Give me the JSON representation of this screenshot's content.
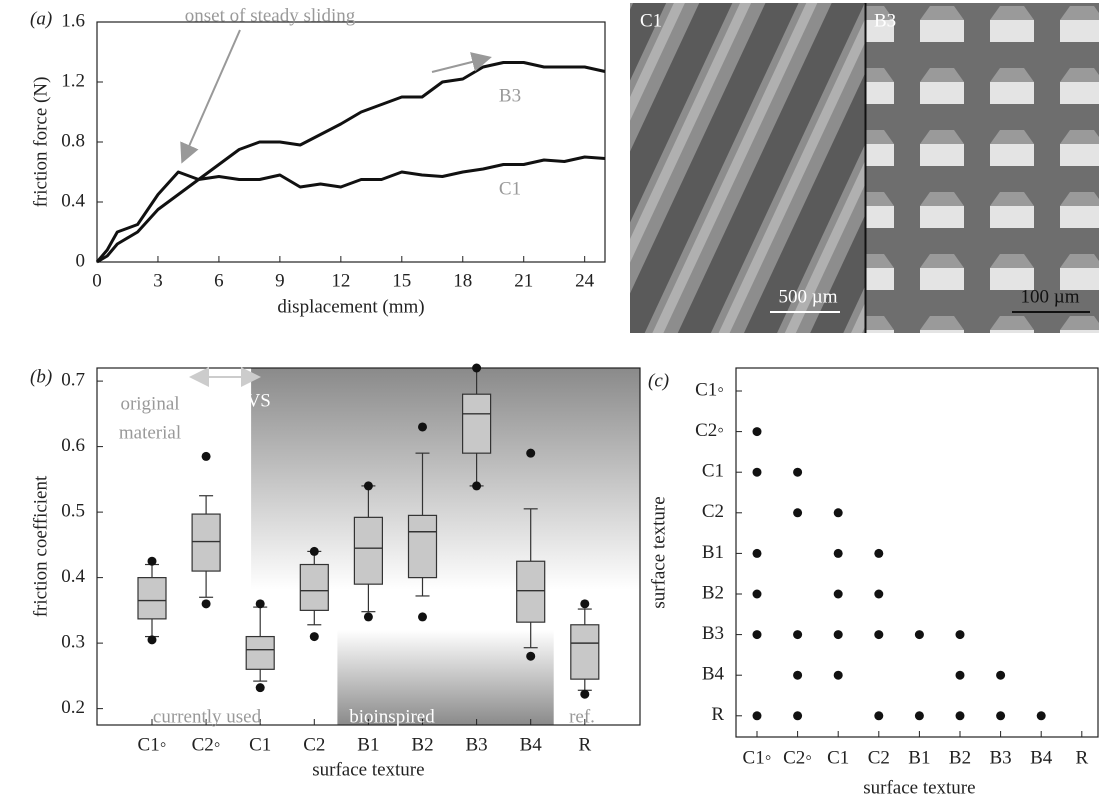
{
  "chart_data": [
    {
      "type": "line",
      "panel_label": "(a)",
      "x_label": "displacement (mm)",
      "y_label": "friction force (N)",
      "annotation": "onset of steady sliding",
      "x": [
        0,
        0.5,
        1,
        2,
        3,
        4,
        5,
        6,
        7,
        8,
        9,
        10,
        11,
        12,
        13,
        14,
        15,
        16,
        17,
        18,
        19,
        20,
        21,
        22,
        23,
        24,
        25
      ],
      "series": [
        {
          "name": "B3",
          "color": "#111111",
          "values": [
            0,
            0.04,
            0.12,
            0.2,
            0.35,
            0.45,
            0.55,
            0.65,
            0.75,
            0.8,
            0.8,
            0.78,
            0.85,
            0.92,
            1.0,
            1.05,
            1.1,
            1.1,
            1.2,
            1.22,
            1.3,
            1.33,
            1.33,
            1.3,
            1.3,
            1.3,
            1.27
          ]
        },
        {
          "name": "C1",
          "color": "#111111",
          "values": [
            0,
            0.08,
            0.2,
            0.25,
            0.45,
            0.6,
            0.55,
            0.57,
            0.55,
            0.55,
            0.58,
            0.5,
            0.52,
            0.5,
            0.55,
            0.55,
            0.6,
            0.58,
            0.57,
            0.6,
            0.62,
            0.65,
            0.65,
            0.68,
            0.67,
            0.7,
            0.69
          ]
        }
      ],
      "xlim": [
        0,
        25
      ],
      "xticks": [
        0,
        3,
        6,
        9,
        12,
        15,
        18,
        21,
        24
      ],
      "ylim": [
        0,
        1.6
      ],
      "yticks": [
        0,
        0.4,
        0.8,
        1.2,
        1.6
      ]
    },
    {
      "type": "box",
      "panel_label": "(b)",
      "x_label": "surface texture",
      "y_label": "friction coefficient",
      "categories": [
        "C1◦",
        "C2◦",
        "C1",
        "C2",
        "B1",
        "B2",
        "B3",
        "B4",
        "R"
      ],
      "whisker_low": [
        0.31,
        0.37,
        0.242,
        0.328,
        0.348,
        0.372,
        0.54,
        0.293,
        0.228
      ],
      "q1": [
        0.337,
        0.41,
        0.26,
        0.35,
        0.39,
        0.4,
        0.59,
        0.332,
        0.245
      ],
      "median": [
        0.365,
        0.455,
        0.29,
        0.38,
        0.445,
        0.47,
        0.65,
        0.38,
        0.3
      ],
      "q3": [
        0.4,
        0.497,
        0.31,
        0.42,
        0.492,
        0.495,
        0.68,
        0.425,
        0.328
      ],
      "whisker_high": [
        0.42,
        0.525,
        0.355,
        0.44,
        0.54,
        0.59,
        0.72,
        0.505,
        0.352
      ],
      "low_points": [
        0.305,
        0.36,
        0.232,
        0.31,
        0.34,
        0.34,
        0.54,
        0.28,
        0.222
      ],
      "high_points": [
        0.425,
        0.585,
        0.36,
        0.44,
        0.54,
        0.63,
        0.72,
        0.59,
        0.36
      ],
      "box_color": "#c8c8c8",
      "annotations": {
        "original": [
          "original",
          "material"
        ],
        "pvs": "PVS",
        "currently_used": "currently used",
        "bioinspired": "bioinspired",
        "ref": "ref."
      },
      "ylim": [
        0.175,
        0.72
      ],
      "yticks": [
        0.2,
        0.3,
        0.4,
        0.5,
        0.6,
        0.7
      ]
    },
    {
      "type": "matrix",
      "panel_label": "(c)",
      "x_label": "surface texture",
      "y_label": "surface texture",
      "x_categories": [
        "C1◦",
        "C2◦",
        "C1",
        "C2",
        "B1",
        "B2",
        "B3",
        "B4",
        "R"
      ],
      "y_categories": [
        "C1◦",
        "C2◦",
        "C1",
        "C2",
        "B1",
        "B2",
        "B3",
        "B4",
        "R"
      ],
      "significant": [
        [
          0,
          0,
          0,
          0,
          0,
          0,
          0,
          0,
          0
        ],
        [
          1,
          0,
          0,
          0,
          0,
          0,
          0,
          0,
          0
        ],
        [
          1,
          1,
          0,
          0,
          0,
          0,
          0,
          0,
          0
        ],
        [
          0,
          1,
          1,
          0,
          0,
          0,
          0,
          0,
          0
        ],
        [
          1,
          0,
          1,
          1,
          0,
          0,
          0,
          0,
          0
        ],
        [
          1,
          0,
          1,
          1,
          0,
          0,
          0,
          0,
          0
        ],
        [
          1,
          1,
          1,
          1,
          1,
          1,
          0,
          0,
          0
        ],
        [
          0,
          1,
          1,
          0,
          0,
          1,
          1,
          0,
          0
        ],
        [
          1,
          1,
          0,
          1,
          1,
          1,
          1,
          1,
          0
        ]
      ]
    }
  ],
  "micrograph": {
    "panels": [
      {
        "label": "C1",
        "scale_bar": "500 µm"
      },
      {
        "label": "B3",
        "scale_bar": "100 µm"
      }
    ]
  }
}
